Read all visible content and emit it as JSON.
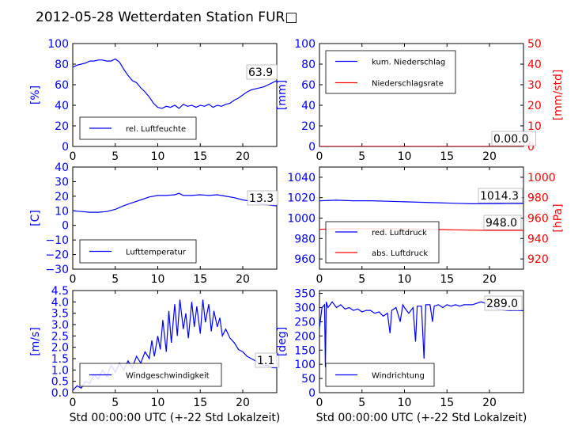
{
  "figure": {
    "title": "2012-05-28 Wetterdaten Station FUR□"
  },
  "chart_data": [
    {
      "id": "humidity",
      "type": "line",
      "ylabel": "[%]",
      "xlabel": "",
      "xlim": [
        0,
        24
      ],
      "ylim": [
        0,
        100
      ],
      "xticks": [
        "0",
        "5",
        "10",
        "15",
        "20"
      ],
      "yticks": [
        "0",
        "20",
        "40",
        "60",
        "80",
        "100"
      ],
      "legend": {
        "placement": "lower-left",
        "entries": [
          {
            "label": "rel. Luftfeuchte",
            "color": "#0000ff"
          }
        ]
      },
      "annotation": "63.9",
      "series": [
        {
          "name": "rel. Luftfeuchte",
          "color": "#0000ff",
          "x": [
            0,
            0.5,
            1,
            1.5,
            2,
            2.5,
            3,
            3.5,
            4,
            4.5,
            5,
            5.5,
            6,
            6.5,
            7,
            7.5,
            8,
            8.5,
            9,
            9.5,
            10,
            10.5,
            11,
            11.5,
            12,
            12.5,
            13,
            13.5,
            14,
            14.5,
            15,
            15.5,
            16,
            16.5,
            17,
            17.5,
            18,
            18.5,
            19,
            19.5,
            20,
            20.5,
            21,
            21.5,
            22,
            22.5,
            23,
            23.5,
            24
          ],
          "y": [
            77,
            79,
            80,
            81,
            83,
            83,
            84,
            84,
            83,
            83,
            85,
            82,
            75,
            69,
            64,
            62,
            57,
            53,
            48,
            42,
            38,
            37,
            39,
            38,
            40,
            37,
            41,
            39,
            40,
            38,
            40,
            39,
            41,
            38,
            40,
            39,
            41,
            42,
            45,
            47,
            50,
            53,
            55,
            56,
            57,
            58,
            60,
            62,
            64
          ]
        }
      ]
    },
    {
      "id": "precip",
      "type": "line",
      "ylabel": "[mm]",
      "y2label": "[mm/std]",
      "xlabel": "",
      "xlim": [
        0,
        24
      ],
      "ylim": [
        0,
        100
      ],
      "y2lim": [
        0,
        50
      ],
      "xticks": [
        "0",
        "5",
        "10",
        "15",
        "20"
      ],
      "yticks": [
        "0",
        "20",
        "40",
        "60",
        "80",
        "100"
      ],
      "y2ticks": [
        "0",
        "10",
        "20",
        "30",
        "40",
        "50"
      ],
      "legend": {
        "placement": "upper-left",
        "entries": [
          {
            "label": "kum. Niederschlag",
            "color": "#0000ff"
          },
          {
            "label": "Niederschlagsrate",
            "color": "#ff0000"
          }
        ]
      },
      "annotation": "0.00.0",
      "series": [
        {
          "name": "kum. Niederschlag",
          "color": "#0000ff",
          "axis": "left",
          "x": [
            0,
            24
          ],
          "y": [
            0,
            0
          ]
        },
        {
          "name": "Niederschlagsrate",
          "color": "#ff0000",
          "axis": "right",
          "x": [
            0,
            24
          ],
          "y": [
            0,
            0
          ]
        }
      ]
    },
    {
      "id": "temperature",
      "type": "line",
      "ylabel": "[C]",
      "xlabel": "",
      "xlim": [
        0,
        24
      ],
      "ylim": [
        -30,
        40
      ],
      "xticks": [
        "0",
        "5",
        "10",
        "15",
        "20"
      ],
      "yticks": [
        "−30",
        "−20",
        "−10",
        "0",
        "10",
        "20",
        "30",
        "40"
      ],
      "legend": {
        "placement": "lower-left",
        "entries": [
          {
            "label": "Lufttemperatur",
            "color": "#0000ff"
          }
        ]
      },
      "annotation": "13.3",
      "series": [
        {
          "name": "Lufttemperatur",
          "color": "#0000ff",
          "x": [
            0,
            1,
            2,
            3,
            4,
            5,
            6,
            7,
            8,
            9,
            10,
            11,
            12,
            12.5,
            13,
            14,
            15,
            16,
            17,
            18,
            19,
            20,
            21,
            22,
            23,
            24
          ],
          "y": [
            10,
            9.5,
            9,
            9,
            9.5,
            11,
            13.5,
            15.5,
            17.5,
            19.5,
            20.5,
            20.5,
            21,
            22,
            20.5,
            20.5,
            21,
            20.5,
            21,
            20,
            19,
            17.5,
            16.5,
            15,
            14,
            13.3
          ]
        }
      ]
    },
    {
      "id": "pressure",
      "type": "line",
      "ylabel": "",
      "y2label": "[hPa]",
      "xlabel": "",
      "xlim": [
        0,
        24
      ],
      "ylim": [
        950,
        1050
      ],
      "y2lim": [
        910,
        1010
      ],
      "xticks": [
        "0",
        "5",
        "10",
        "15",
        "20"
      ],
      "yticks": [
        "960",
        "980",
        "1000",
        "1020",
        "1040"
      ],
      "y2ticks": [
        "920",
        "940",
        "960",
        "980",
        "1000"
      ],
      "legend": {
        "placement": "lower-left",
        "entries": [
          {
            "label": "red. Luftdruck",
            "color": "#0000ff"
          },
          {
            "label": "abs. Luftdruck",
            "color": "#ff0000"
          }
        ]
      },
      "annotations": [
        "1014.3",
        "948.0"
      ],
      "series": [
        {
          "name": "red. Luftdruck",
          "color": "#0000ff",
          "axis": "left",
          "x": [
            0,
            2,
            4,
            6,
            8,
            10,
            12,
            14,
            16,
            18,
            20,
            22,
            24
          ],
          "y": [
            1017,
            1017.5,
            1017,
            1017,
            1016.5,
            1016,
            1015.5,
            1015,
            1014.5,
            1014,
            1014,
            1014.2,
            1014.3
          ]
        },
        {
          "name": "abs. Luftdruck",
          "color": "#ff0000",
          "axis": "right",
          "x": [
            0,
            2,
            4,
            6,
            8,
            10,
            12,
            14,
            16,
            18,
            20,
            22,
            24
          ],
          "y": [
            949,
            949.5,
            949.5,
            949.5,
            949.5,
            949.5,
            949,
            948.8,
            948.5,
            948.2,
            948,
            948,
            948
          ]
        }
      ]
    },
    {
      "id": "windspeed",
      "type": "line",
      "ylabel": "[m/s]",
      "xlabel": "Std 00:00:00 UTC (+-22 Std Lokalzeit)",
      "xlim": [
        0,
        24
      ],
      "ylim": [
        0,
        4.5
      ],
      "xticks": [
        "0",
        "5",
        "10",
        "15",
        "20"
      ],
      "yticks": [
        "0.0",
        "0.5",
        "1.0",
        "1.5",
        "2.0",
        "2.5",
        "3.0",
        "3.5",
        "4.0",
        "4.5"
      ],
      "legend": {
        "placement": "lower-left",
        "entries": [
          {
            "label": "Windgeschwindigkeit",
            "color": "#0000ff"
          }
        ]
      },
      "annotation": "1.1",
      "series": [
        {
          "name": "Windgeschwindigkeit",
          "color": "#0000ff",
          "x": [
            0,
            0.5,
            1,
            1.5,
            2,
            2.5,
            3,
            3.5,
            4,
            4.5,
            5,
            5.5,
            6,
            6.5,
            7,
            7.5,
            8,
            8.5,
            9,
            9.3,
            9.6,
            10,
            10.3,
            10.6,
            11,
            11.3,
            11.6,
            12,
            12.3,
            12.6,
            13,
            13.3,
            13.6,
            14,
            14.3,
            14.6,
            15,
            15.3,
            15.6,
            16,
            16.3,
            16.6,
            17,
            17.3,
            17.6,
            18,
            18.5,
            19,
            19.5,
            20,
            20.5,
            21,
            21.5,
            22,
            22.5,
            23,
            23.5,
            24
          ],
          "y": [
            0.1,
            0.3,
            0.2,
            0.5,
            0.4,
            0.8,
            0.6,
            1.0,
            0.7,
            1.2,
            0.9,
            1.3,
            1.0,
            1.4,
            1.1,
            1.6,
            1.3,
            1.8,
            1.5,
            2.3,
            1.6,
            2.5,
            1.9,
            3.2,
            1.8,
            3.6,
            2.2,
            3.9,
            2.5,
            4.1,
            2.8,
            3.5,
            2.4,
            4.0,
            2.9,
            3.8,
            2.6,
            4.1,
            3.1,
            3.9,
            2.7,
            3.6,
            2.9,
            3.3,
            2.5,
            2.8,
            2.4,
            2.2,
            1.9,
            1.8,
            1.6,
            1.5,
            1.4,
            1.3,
            1.2,
            1.2,
            1.1,
            1.1
          ]
        }
      ]
    },
    {
      "id": "winddir",
      "type": "line",
      "ylabel": "[deg]",
      "xlabel": "Std 00:00:00 UTC (+-22 Std Lokalzeit)",
      "xlim": [
        0,
        24
      ],
      "ylim": [
        0,
        360
      ],
      "xticks": [
        "0",
        "5",
        "10",
        "15",
        "20"
      ],
      "yticks": [
        "0",
        "50",
        "100",
        "150",
        "200",
        "250",
        "300",
        "350"
      ],
      "legend": {
        "placement": "lower-left",
        "entries": [
          {
            "label": "Windrichtung",
            "color": "#0000ff"
          }
        ]
      },
      "annotation": "289.0",
      "series": [
        {
          "name": "Windrichtung",
          "color": "#0000ff",
          "x": [
            0,
            0.3,
            0.6,
            0.7,
            0.8,
            1,
            1.5,
            2,
            2.5,
            3,
            3.5,
            4,
            4.5,
            5,
            5.5,
            6,
            6.5,
            7,
            7.5,
            8,
            8.3,
            8.5,
            9,
            9.5,
            9.8,
            10,
            10.5,
            11,
            11.3,
            11.5,
            12,
            12.3,
            12.5,
            13,
            13.3,
            13.5,
            14,
            14.5,
            15,
            15.5,
            16,
            16.5,
            17,
            17.5,
            18,
            18.5,
            19,
            19.5,
            20,
            20.5,
            21,
            21.5,
            22,
            22.5,
            23,
            23.5,
            24
          ],
          "y": [
            230,
            300,
            310,
            90,
            320,
            300,
            320,
            300,
            310,
            295,
            300,
            290,
            295,
            285,
            290,
            290,
            280,
            285,
            270,
            280,
            210,
            290,
            300,
            250,
            310,
            300,
            280,
            300,
            180,
            305,
            305,
            120,
            310,
            310,
            250,
            305,
            310,
            300,
            310,
            305,
            310,
            305,
            310,
            310,
            310,
            315,
            320,
            315,
            310,
            300,
            295,
            292,
            290,
            289,
            290,
            289,
            289
          ]
        }
      ]
    }
  ]
}
